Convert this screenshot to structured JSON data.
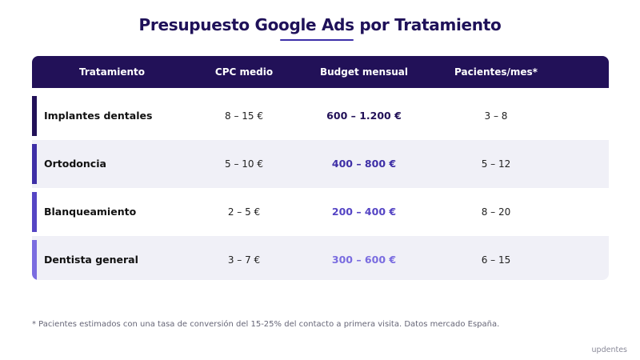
{
  "title": "Presupuesto Google Ads por Tratamiento",
  "table": {
    "headers": [
      "Tratamiento",
      "CPC medio",
      "Budget mensual",
      "Pacientes/mes*"
    ],
    "rows": [
      {
        "name": "Implantes dentales",
        "cpc": "8 – 15 €",
        "budget": "600 – 1.200 €",
        "patients": "3 – 8",
        "accent_color": "#221158",
        "budget_color": "#221158"
      },
      {
        "name": "Ortodoncia",
        "cpc": "5 – 10 €",
        "budget": "400 – 800 €",
        "patients": "5 – 12",
        "accent_color": "#3e2fa6",
        "budget_color": "#3e2fa6"
      },
      {
        "name": "Blanqueamiento",
        "cpc": "2 – 5 €",
        "budget": "200 – 400 €",
        "patients": "8 – 20",
        "accent_color": "#5545c4",
        "budget_color": "#5545c4"
      },
      {
        "name": "Dentista general",
        "cpc": "3 – 7 €",
        "budget": "300 – 600 €",
        "patients": "6 – 15",
        "accent_color": "#7a6ce0",
        "budget_color": "#7a6ce0"
      }
    ]
  },
  "footnote": "* Pacientes estimados con una tasa de conversión del 15-25% del contacto a primera visita. Datos mercado España.",
  "brand": "updentes"
}
